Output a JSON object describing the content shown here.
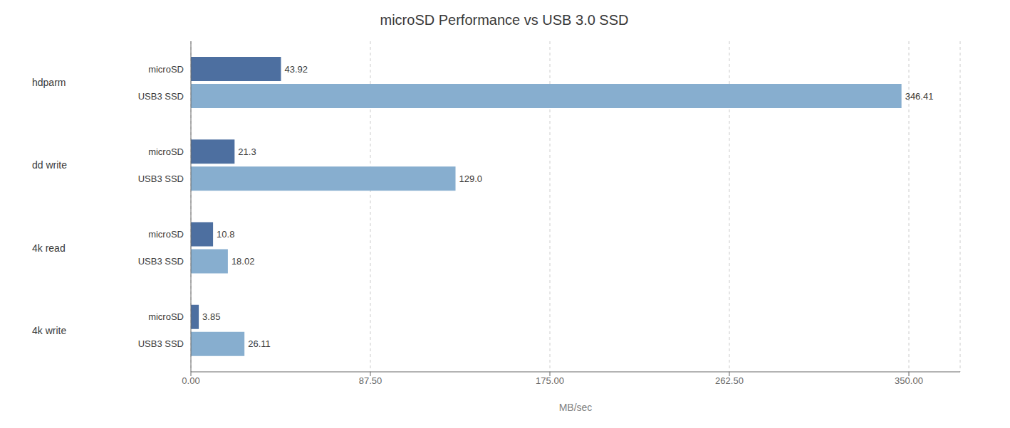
{
  "chart_data": {
    "type": "bar",
    "orientation": "horizontal",
    "title": "microSD Performance vs USB 3.0 SSD",
    "xlabel": "MB/sec",
    "categories": [
      "hdparm",
      "dd write",
      "4k read",
      "4k write"
    ],
    "series": [
      {
        "name": "microSD",
        "color": "#4d6fa0",
        "values": [
          43.92,
          21.3,
          10.8,
          3.85
        ]
      },
      {
        "name": "USB3 SSD",
        "color": "#87aecf",
        "values": [
          346.41,
          129.0,
          18.02,
          26.11
        ],
        "value_labels": [
          "346.41",
          "129.0",
          "18.02",
          "26.11"
        ]
      }
    ],
    "xlim": [
      0,
      375
    ],
    "xticks": [
      {
        "value": 0,
        "label": "0.00"
      },
      {
        "value": 87.5,
        "label": "87.50"
      },
      {
        "value": 175,
        "label": "175.00"
      },
      {
        "value": 262.5,
        "label": "262.50"
      },
      {
        "value": 350,
        "label": "350.00"
      }
    ],
    "grid": true,
    "data_labels": true
  }
}
